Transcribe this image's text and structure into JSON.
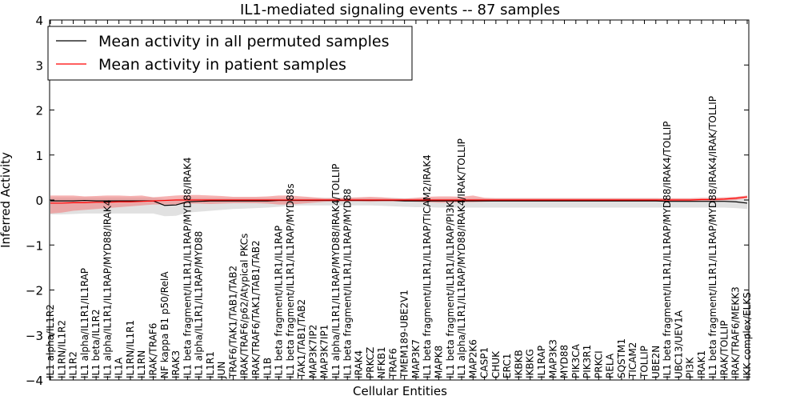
{
  "chart_data": {
    "type": "line",
    "title": "IL1-mediated signaling events -- 87 samples",
    "xlabel": "Cellular Entities",
    "ylabel": "Inferred Activity",
    "ylim": [
      -4,
      4
    ],
    "yticks": [
      -4,
      -3,
      -2,
      -1,
      0,
      1,
      2,
      3,
      4
    ],
    "ytick_labels": [
      "−4",
      "−3",
      "−2",
      "−1",
      "0",
      "1",
      "2",
      "3",
      "4"
    ],
    "legend_position": "top-left",
    "categories": [
      "IL1 alpha/IL1R2",
      "IL1RN/IL1R2",
      "IL1R2",
      "IL1 alpha/IL1R1/IL1RAP",
      "IL1 beta/IL1R2",
      "IL1 alpha/IL1R1/IL1RAP/MYD88/IRAK4",
      "IL1A",
      "IL1RN/IL1R1",
      "IL1RN",
      "IRAK/TRAF6",
      "NF kappa B1 p50/RelA",
      "IRAK3",
      "IL1 beta fragment/IL1R1/IL1RAP/MYD88/IRAK4",
      "IL1 alpha/IL1R1/IL1RAP/MYD88",
      "IL1R1",
      "JUN",
      "TRAF6/TAK1/TAB1/TAB2",
      "IRAK/TRAF6/p62/Atypical PKCs",
      "IRAK/TRAF6/TAK1/TAB1/TAB2",
      "IL1B",
      "IL1 beta fragment/IL1R1/IL1RAP",
      "IL1 beta fragment/IL1R1/IL1RAP/MYD88s",
      "TAK1/TAB1/TAB2",
      "MAP3K7IP2",
      "MAP3K7IP1",
      "IL1 alpha/IL1R1/IL1RAP/MYD88/IRAK4/TOLLIP",
      "IL1 beta fragment/IL1R1/IL1RAP/MYD88",
      "IRAK4",
      "PRKCZ",
      "NFKB1",
      "TRAF6",
      "TMEM189-UBE2V1",
      "MAP3K7",
      "IL1 beta fragment/IL1R1/IL1RAP/TICAM2/IRAK4",
      "MAPK8",
      "IL1 beta fragment/IL1R1/IL1RAP/PI3K",
      "IL1 alpha/IL1R1/IL1RAP/MYD88/IRAK4/IRAK/TOLLIP",
      "MAP2K6",
      "CASP1",
      "CHUK",
      "ERC1",
      "IKBKB",
      "IKBKG",
      "IL1RAP",
      "MAP3K3",
      "MYD88",
      "PIK3CA",
      "PIK3R1",
      "PRKCI",
      "RELA",
      "SQSTM1",
      "TICAM2",
      "TOLLIP",
      "UBE2N",
      "IL1 beta fragment/IL1R1/IL1RAP/MYD88/IRAK4/TOLLIP",
      "UBC13/UEV1A",
      "PI3K",
      "IRAK1",
      "IL1 beta fragment/IL1R1/IL1RAP/MYD88/IRAK4/IRAK/TOLLIP",
      "IRAK/TOLLIP",
      "IRAK/TRAF6/MEKK3",
      "IKK complex/ELKS"
    ],
    "series": [
      {
        "name": "Mean activity in all permuted samples",
        "color": "#000000",
        "band_color": "#c8c8c8",
        "values": [
          -0.02,
          -0.02,
          -0.02,
          -0.01,
          -0.02,
          -0.02,
          -0.02,
          -0.02,
          -0.02,
          -0.02,
          -0.12,
          -0.11,
          -0.04,
          -0.03,
          -0.02,
          -0.02,
          -0.02,
          -0.02,
          -0.02,
          -0.02,
          -0.01,
          -0.01,
          -0.01,
          -0.01,
          -0.01,
          -0.01,
          -0.01,
          -0.01,
          -0.01,
          -0.01,
          -0.01,
          -0.02,
          -0.02,
          -0.02,
          -0.02,
          -0.02,
          -0.02,
          -0.02,
          -0.02,
          -0.02,
          -0.02,
          -0.02,
          -0.02,
          -0.02,
          -0.02,
          -0.02,
          -0.02,
          -0.02,
          -0.02,
          -0.02,
          -0.02,
          -0.02,
          -0.02,
          -0.02,
          -0.03,
          -0.03,
          -0.03,
          -0.03,
          -0.03,
          -0.03,
          -0.04,
          -0.07
        ],
        "upper": [
          0.06,
          0.06,
          0.06,
          0.06,
          0.06,
          0.06,
          0.06,
          0.06,
          0.06,
          0.06,
          0.02,
          0.02,
          0.05,
          0.05,
          0.05,
          0.05,
          0.05,
          0.05,
          0.05,
          0.05,
          0.05,
          0.05,
          0.05,
          0.05,
          0.05,
          0.05,
          0.05,
          0.05,
          0.05,
          0.05,
          0.05,
          0.04,
          0.04,
          0.04,
          0.04,
          0.04,
          0.04,
          0.04,
          0.04,
          0.04,
          0.04,
          0.04,
          0.04,
          0.04,
          0.04,
          0.04,
          0.04,
          0.04,
          0.04,
          0.04,
          0.04,
          0.04,
          0.04,
          0.04,
          0.03,
          0.03,
          0.03,
          0.03,
          0.03,
          0.03,
          0.03,
          0.02
        ],
        "lower": [
          -0.32,
          -0.32,
          -0.31,
          -0.3,
          -0.3,
          -0.3,
          -0.3,
          -0.3,
          -0.3,
          -0.3,
          -0.36,
          -0.35,
          -0.28,
          -0.26,
          -0.24,
          -0.22,
          -0.2,
          -0.19,
          -0.18,
          -0.17,
          -0.15,
          -0.13,
          -0.12,
          -0.12,
          -0.12,
          -0.12,
          -0.12,
          -0.12,
          -0.12,
          -0.13,
          -0.14,
          -0.15,
          -0.16,
          -0.16,
          -0.17,
          -0.17,
          -0.17,
          -0.17,
          -0.17,
          -0.17,
          -0.17,
          -0.17,
          -0.17,
          -0.17,
          -0.17,
          -0.17,
          -0.17,
          -0.17,
          -0.17,
          -0.17,
          -0.17,
          -0.17,
          -0.17,
          -0.17,
          -0.17,
          -0.17,
          -0.17,
          -0.17,
          -0.17,
          -0.17,
          -0.18,
          -0.2
        ]
      },
      {
        "name": "Mean activity in patient samples",
        "color": "#ff0000",
        "band_color": "#f08080",
        "values": [
          -0.07,
          -0.07,
          -0.06,
          -0.06,
          -0.05,
          -0.05,
          -0.04,
          -0.04,
          -0.03,
          -0.02,
          -0.01,
          0,
          0,
          0,
          0,
          0,
          0,
          0,
          0,
          0,
          0,
          0,
          0,
          0,
          0,
          0,
          0,
          0,
          0,
          0,
          0,
          0,
          0,
          0,
          0,
          0,
          0,
          0,
          0,
          0,
          0,
          0,
          0,
          0,
          0,
          0,
          0,
          0,
          0,
          0,
          0,
          0,
          0,
          0,
          0,
          0,
          0,
          0.01,
          0.01,
          0.02,
          0.04,
          0.07
        ],
        "upper": [
          0.1,
          0.1,
          0.1,
          0.08,
          0.09,
          0.1,
          0.1,
          0.09,
          0.1,
          0.06,
          0.08,
          0.1,
          0.11,
          0.11,
          0.1,
          0.09,
          0.07,
          0.07,
          0.07,
          0.08,
          0.1,
          0.1,
          0.08,
          0.06,
          0.04,
          0.04,
          0.05,
          0.06,
          0.07,
          0.06,
          0.04,
          0.03,
          0.05,
          0.07,
          0.08,
          0.08,
          0.07,
          0.1,
          0.05,
          0.04,
          0.04,
          0.04,
          0.04,
          0.04,
          0.04,
          0.04,
          0.04,
          0.04,
          0.04,
          0.04,
          0.04,
          0.04,
          0.04,
          0.04,
          0.04,
          0.04,
          0.04,
          0.05,
          0.05,
          0.06,
          0.07,
          0.1
        ],
        "lower": [
          -0.3,
          -0.28,
          -0.24,
          -0.22,
          -0.2,
          -0.18,
          -0.16,
          -0.14,
          -0.12,
          -0.1,
          -0.1,
          -0.1,
          -0.08,
          -0.08,
          -0.09,
          -0.08,
          -0.07,
          -0.07,
          -0.07,
          -0.08,
          -0.1,
          -0.1,
          -0.08,
          -0.06,
          -0.04,
          -0.03,
          -0.03,
          -0.03,
          -0.04,
          -0.03,
          -0.03,
          -0.03,
          -0.04,
          -0.05,
          -0.06,
          -0.06,
          -0.05,
          -0.05,
          -0.04,
          -0.03,
          -0.03,
          -0.03,
          -0.03,
          -0.03,
          -0.03,
          -0.03,
          -0.03,
          -0.03,
          -0.03,
          -0.03,
          -0.03,
          -0.03,
          -0.03,
          -0.03,
          -0.03,
          -0.03,
          -0.03,
          -0.02,
          -0.02,
          -0.01,
          0,
          0.03
        ]
      }
    ]
  }
}
